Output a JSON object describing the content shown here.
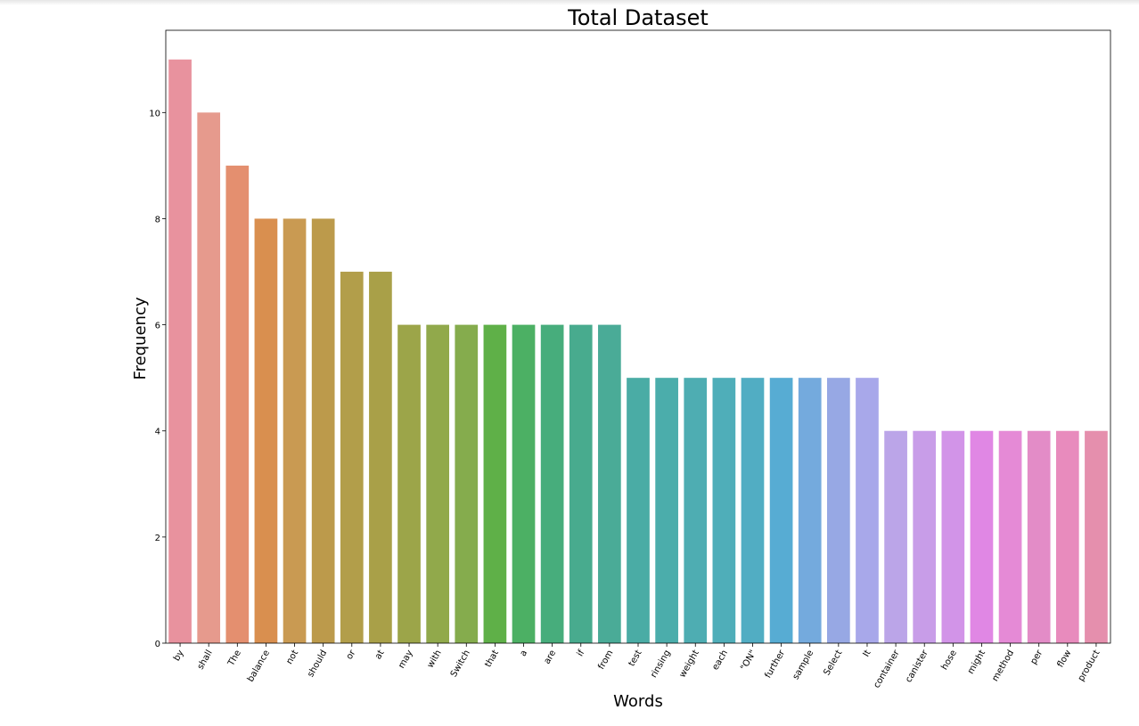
{
  "chart_data": {
    "type": "bar",
    "title": "Total Dataset",
    "xlabel": "Words",
    "ylabel": "Frequency",
    "ylim": [
      0,
      11.55
    ],
    "yticks": [
      0,
      2,
      4,
      6,
      8,
      10
    ],
    "grid": false,
    "categories": [
      "by",
      "shall",
      "The",
      "balance",
      "not",
      "should",
      "or",
      "at",
      "may",
      "with",
      "Switch",
      "that",
      "a",
      "are",
      "if",
      "from",
      "test",
      "rinsing",
      "weight",
      "each",
      "\"ON\"",
      "further",
      "sample",
      "Select",
      "It",
      "container",
      "canister",
      "hose",
      "might",
      "method",
      "per",
      "flow",
      "product"
    ],
    "values": [
      11,
      10,
      9,
      8,
      8,
      8,
      7,
      7,
      6,
      6,
      6,
      6,
      6,
      6,
      6,
      6,
      5,
      5,
      5,
      5,
      5,
      5,
      5,
      5,
      5,
      4,
      4,
      4,
      4,
      4,
      4,
      4,
      4
    ],
    "colors": [
      "#e8929e",
      "#e69a8d",
      "#e48f6f",
      "#d98f4f",
      "#c99a52",
      "#bc9a4b",
      "#b29e4a",
      "#a9a048",
      "#9ca549",
      "#91a94b",
      "#85ac4d",
      "#5fb048",
      "#4cb064",
      "#47ad7c",
      "#48ab8e",
      "#4aab97",
      "#4aaca5",
      "#4badab",
      "#4eadb2",
      "#4faeb9",
      "#51adc3",
      "#57acd3",
      "#74aadd",
      "#97a8e4",
      "#a8a8ea",
      "#bba5e8",
      "#c89de8",
      "#d294e8",
      "#e087e4",
      "#e58ad6",
      "#e38cc7",
      "#e88bbd",
      "#e58fad"
    ]
  }
}
